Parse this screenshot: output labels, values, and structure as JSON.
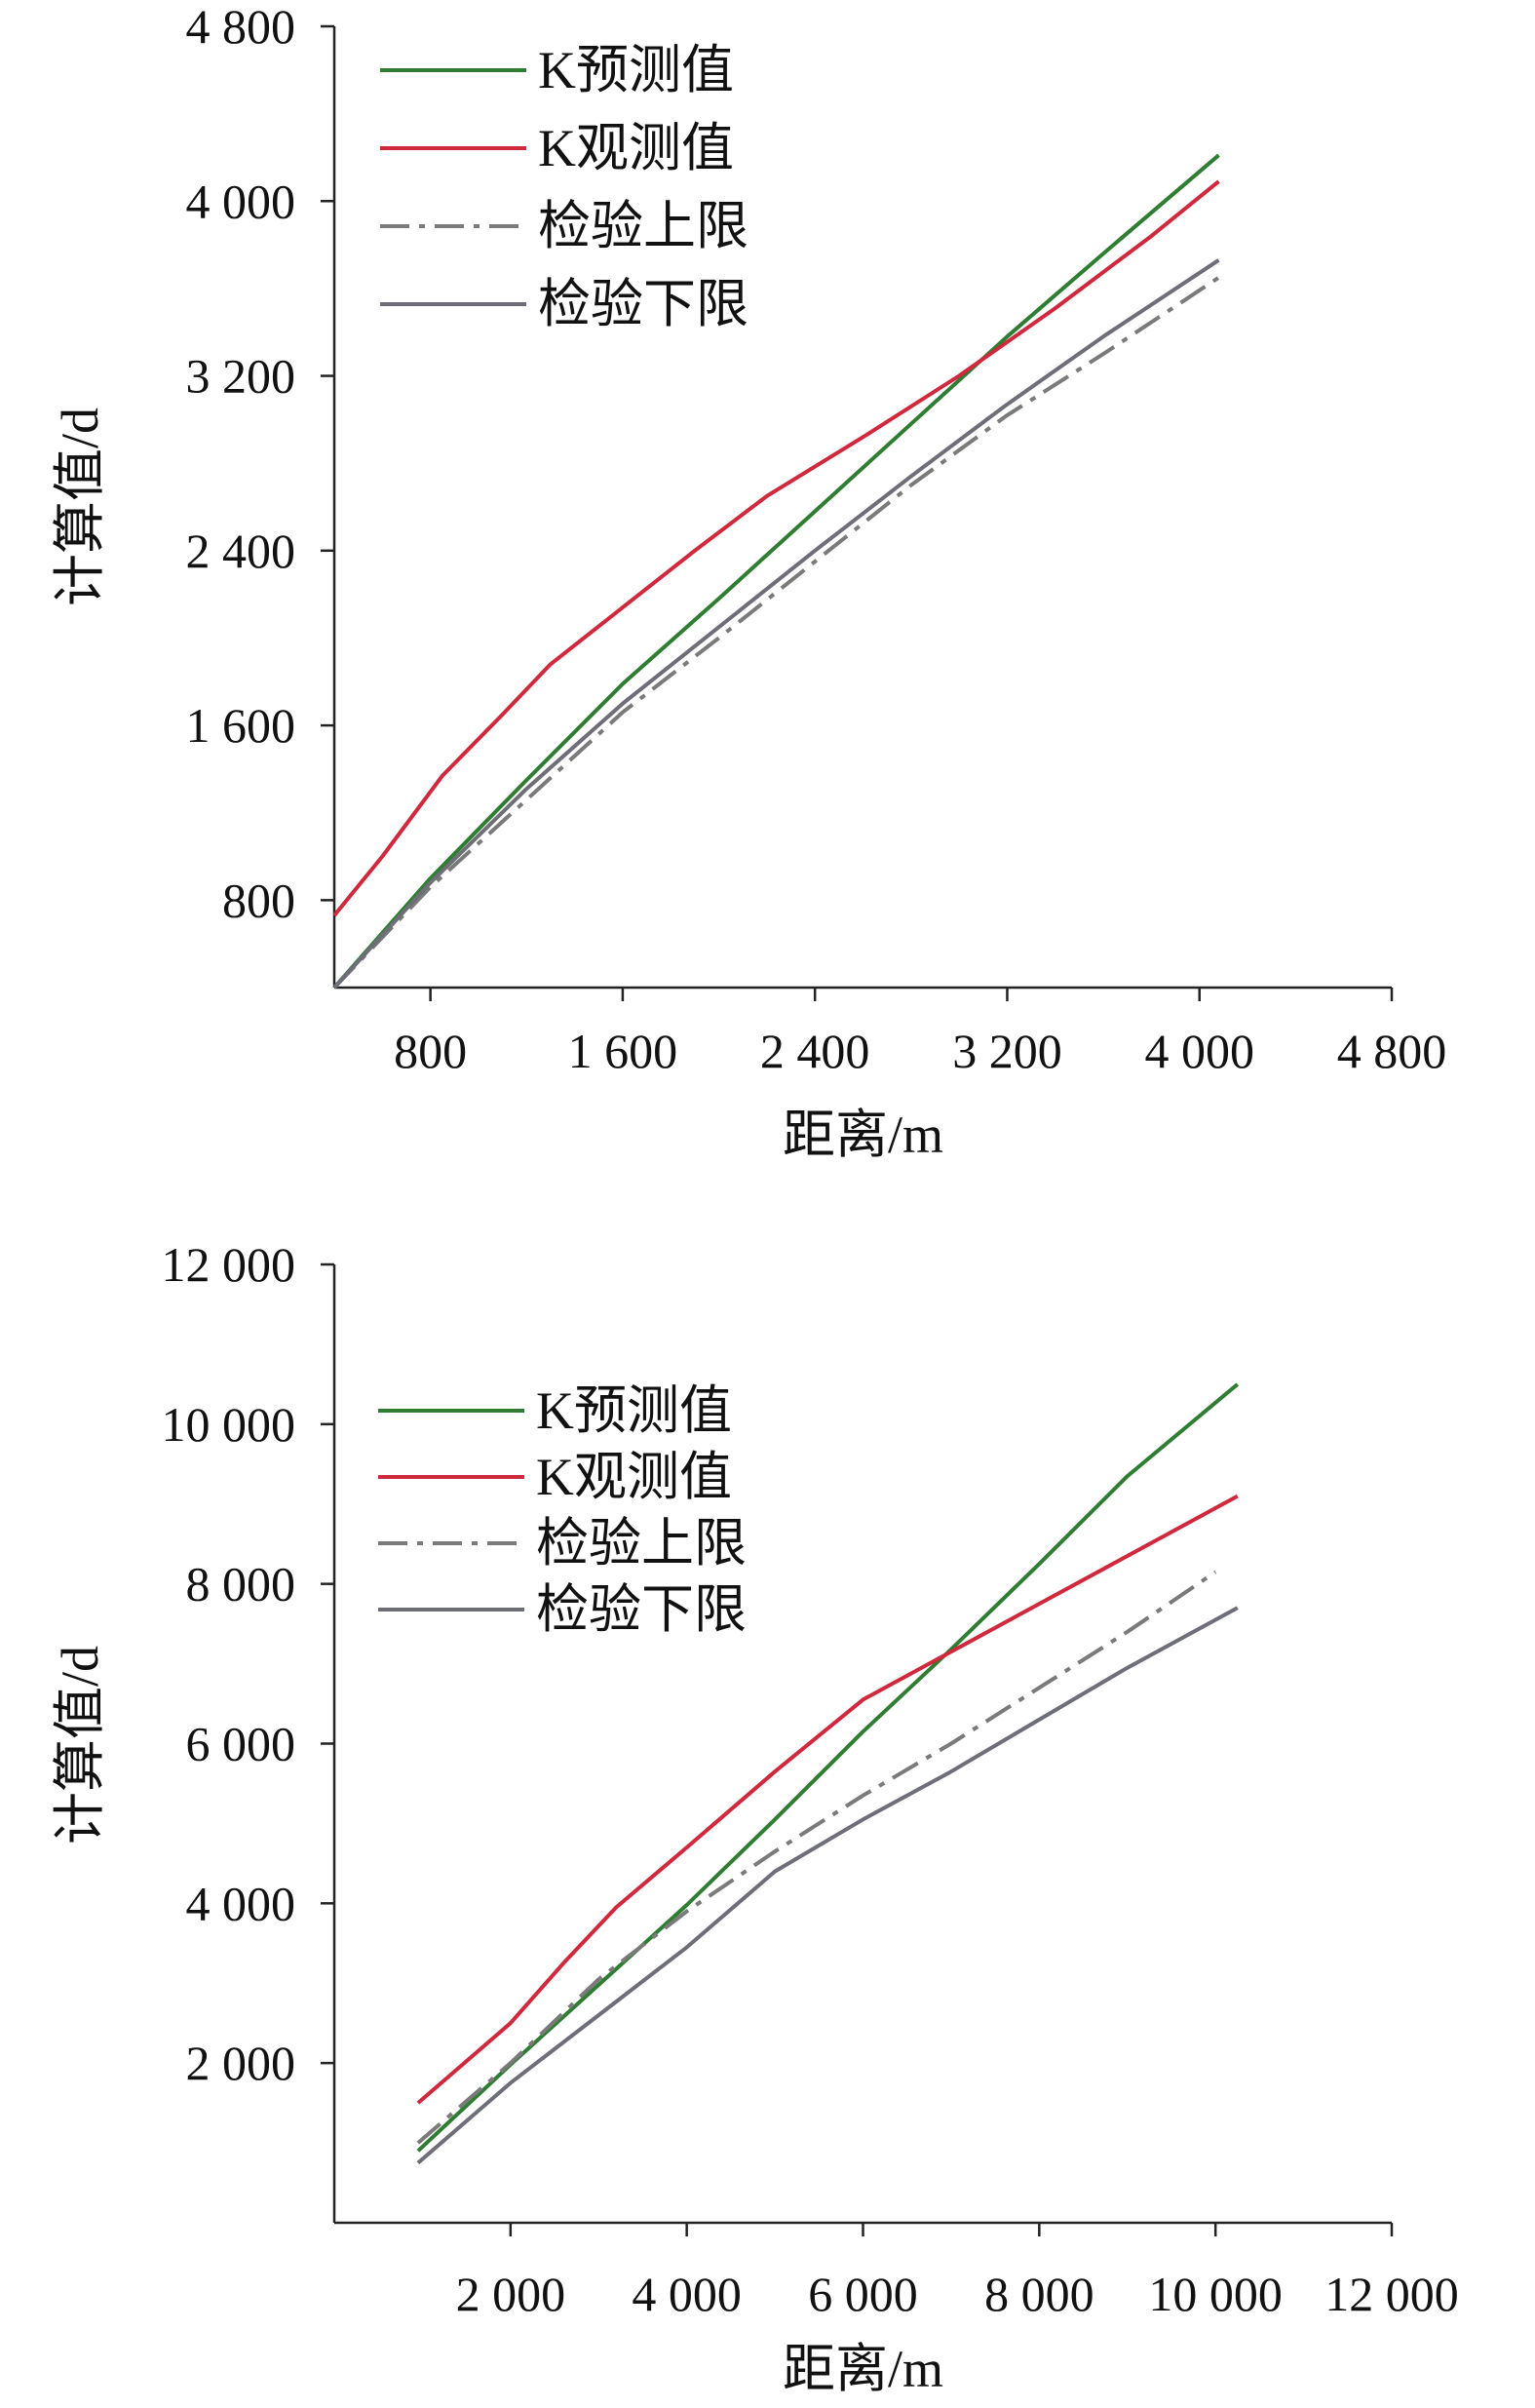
{
  "chart_data": [
    {
      "type": "line",
      "title": "",
      "xlabel": "距离/m",
      "ylabel": "计算值/d",
      "xlim": [
        400,
        4800
      ],
      "ylim": [
        400,
        4800
      ],
      "x_ticks": [
        800,
        1600,
        2400,
        3200,
        4000,
        4800
      ],
      "x_tick_labels": [
        "800",
        "1 600",
        "2 400",
        "3 200",
        "4 000",
        "4 800"
      ],
      "y_ticks": [
        800,
        1600,
        2400,
        3200,
        4000,
        4800
      ],
      "y_tick_labels": [
        "800",
        "1 600",
        "2 400",
        "3 200",
        "4 000",
        "4 800"
      ],
      "grid": false,
      "legend_position": "top-left",
      "series": [
        {
          "name": "K预测值",
          "color": "#2e7d32",
          "dash": "solid",
          "points": [
            [
              400,
              400
            ],
            [
              800,
              900
            ],
            [
              1200,
              1350
            ],
            [
              1600,
              1790
            ],
            [
              2000,
              2180
            ],
            [
              2400,
              2580
            ],
            [
              2800,
              2980
            ],
            [
              3200,
              3380
            ],
            [
              3600,
              3760
            ],
            [
              4080,
              4210
            ]
          ]
        },
        {
          "name": "K观测值",
          "color": "#d0283c",
          "dash": "solid",
          "points": [
            [
              400,
              730
            ],
            [
              600,
              1000
            ],
            [
              850,
              1370
            ],
            [
              1100,
              1650
            ],
            [
              1300,
              1880
            ],
            [
              1600,
              2140
            ],
            [
              1900,
              2400
            ],
            [
              2200,
              2650
            ],
            [
              2600,
              2920
            ],
            [
              3000,
              3200
            ],
            [
              3400,
              3510
            ],
            [
              3800,
              3840
            ],
            [
              4080,
              4090
            ]
          ]
        },
        {
          "name": "检验上限",
          "color": "#7a7a7a",
          "dash": "dashdot",
          "points": [
            [
              400,
              400
            ],
            [
              800,
              860
            ],
            [
              1200,
              1260
            ],
            [
              1600,
              1660
            ],
            [
              2000,
              2000
            ],
            [
              2400,
              2350
            ],
            [
              2800,
              2700
            ],
            [
              3200,
              3020
            ],
            [
              3600,
              3300
            ],
            [
              4080,
              3650
            ]
          ]
        },
        {
          "name": "检验下限",
          "color": "#6e6e78",
          "dash": "solid",
          "points": [
            [
              400,
              400
            ],
            [
              800,
              880
            ],
            [
              1200,
              1310
            ],
            [
              1600,
              1700
            ],
            [
              2000,
              2050
            ],
            [
              2400,
              2400
            ],
            [
              2800,
              2740
            ],
            [
              3200,
              3070
            ],
            [
              3600,
              3380
            ],
            [
              4080,
              3730
            ]
          ]
        }
      ]
    },
    {
      "type": "line",
      "title": "",
      "xlabel": "距离/m",
      "ylabel": "计算值/d",
      "xlim": [
        0,
        12000
      ],
      "ylim": [
        0,
        12000
      ],
      "x_ticks": [
        2000,
        4000,
        6000,
        8000,
        10000,
        12000
      ],
      "x_tick_labels": [
        "2 000",
        "4 000",
        "6 000",
        "8 000",
        "10 000",
        "12 000"
      ],
      "y_ticks": [
        2000,
        4000,
        6000,
        8000,
        10000,
        12000
      ],
      "y_tick_labels": [
        "2 000",
        "4 000",
        "6 000",
        "8 000",
        "10 000",
        "12 000"
      ],
      "grid": false,
      "legend_position": "top-left",
      "series": [
        {
          "name": "K预测值",
          "color": "#2e7d32",
          "dash": "solid",
          "points": [
            [
              950,
              900
            ],
            [
              2000,
              1980
            ],
            [
              3000,
              2980
            ],
            [
              4000,
              3980
            ],
            [
              5000,
              5050
            ],
            [
              6000,
              6150
            ],
            [
              7000,
              7180
            ],
            [
              8000,
              8250
            ],
            [
              9000,
              9350
            ],
            [
              10250,
              10500
            ]
          ]
        },
        {
          "name": "K观测值",
          "color": "#d0283c",
          "dash": "solid",
          "points": [
            [
              950,
              1500
            ],
            [
              2000,
              2500
            ],
            [
              2600,
              3250
            ],
            [
              3200,
              3950
            ],
            [
              4000,
              4700
            ],
            [
              5000,
              5650
            ],
            [
              6000,
              6550
            ],
            [
              7000,
              7150
            ],
            [
              8000,
              7750
            ],
            [
              9000,
              8350
            ],
            [
              10250,
              9100
            ]
          ]
        },
        {
          "name": "检验上限",
          "color": "#7a7a7a",
          "dash": "dashdot",
          "points": [
            [
              950,
              1000
            ],
            [
              2000,
              2000
            ],
            [
              3000,
              3050
            ],
            [
              4000,
              3900
            ],
            [
              5000,
              4650
            ],
            [
              6000,
              5350
            ],
            [
              7000,
              6000
            ],
            [
              8000,
              6700
            ],
            [
              9000,
              7400
            ],
            [
              10000,
              8150
            ]
          ]
        },
        {
          "name": "检验下限",
          "color": "#6e6e78",
          "dash": "solid",
          "points": [
            [
              950,
              750
            ],
            [
              2000,
              1750
            ],
            [
              3000,
              2600
            ],
            [
              4000,
              3450
            ],
            [
              5000,
              4400
            ],
            [
              6000,
              5050
            ],
            [
              7000,
              5650
            ],
            [
              8000,
              6300
            ],
            [
              9000,
              6950
            ],
            [
              10250,
              7700
            ]
          ]
        }
      ]
    }
  ]
}
